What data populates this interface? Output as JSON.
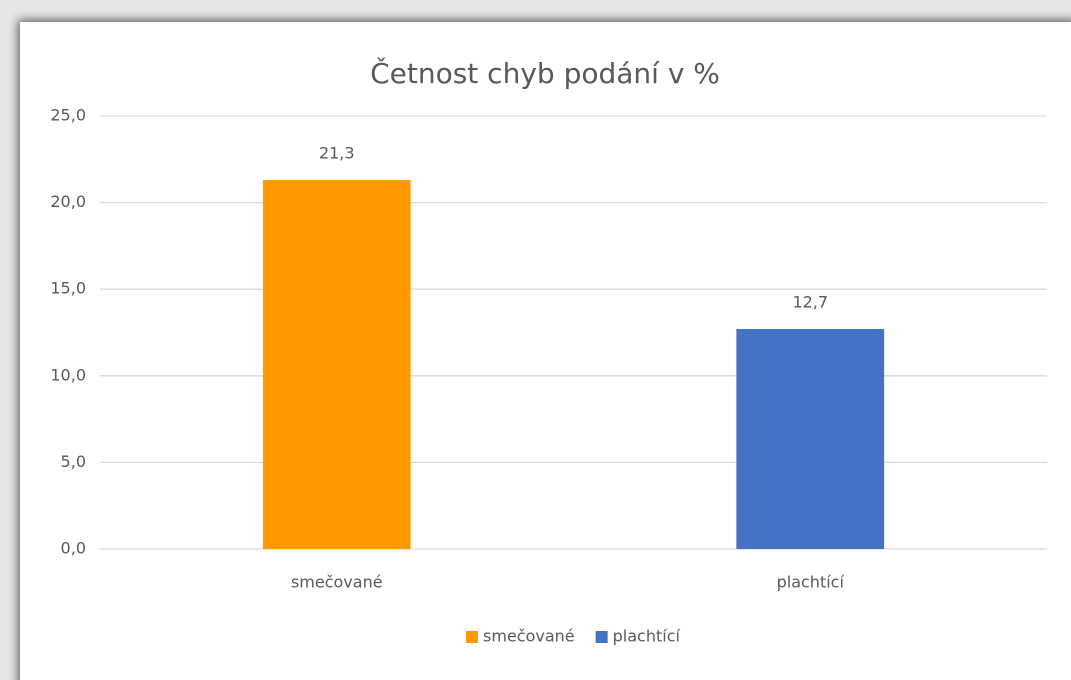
{
  "chart_data": {
    "type": "bar",
    "title": "Četnost chyb podání v %",
    "categories": [
      "smečované",
      "plachtící"
    ],
    "values": [
      21.3,
      12.7
    ],
    "value_labels": [
      "21,3",
      "12,7"
    ],
    "colors": [
      "#ff9900",
      "#4472c4"
    ],
    "ylim": [
      0,
      25
    ],
    "yticks": [
      {
        "value": 0,
        "label": "0,0"
      },
      {
        "value": 5,
        "label": "5,0"
      },
      {
        "value": 10,
        "label": "10,0"
      },
      {
        "value": 15,
        "label": "15,0"
      },
      {
        "value": 20,
        "label": "20,0"
      },
      {
        "value": 25,
        "label": "25,0"
      }
    ],
    "grid": true,
    "legend": "bottom"
  }
}
